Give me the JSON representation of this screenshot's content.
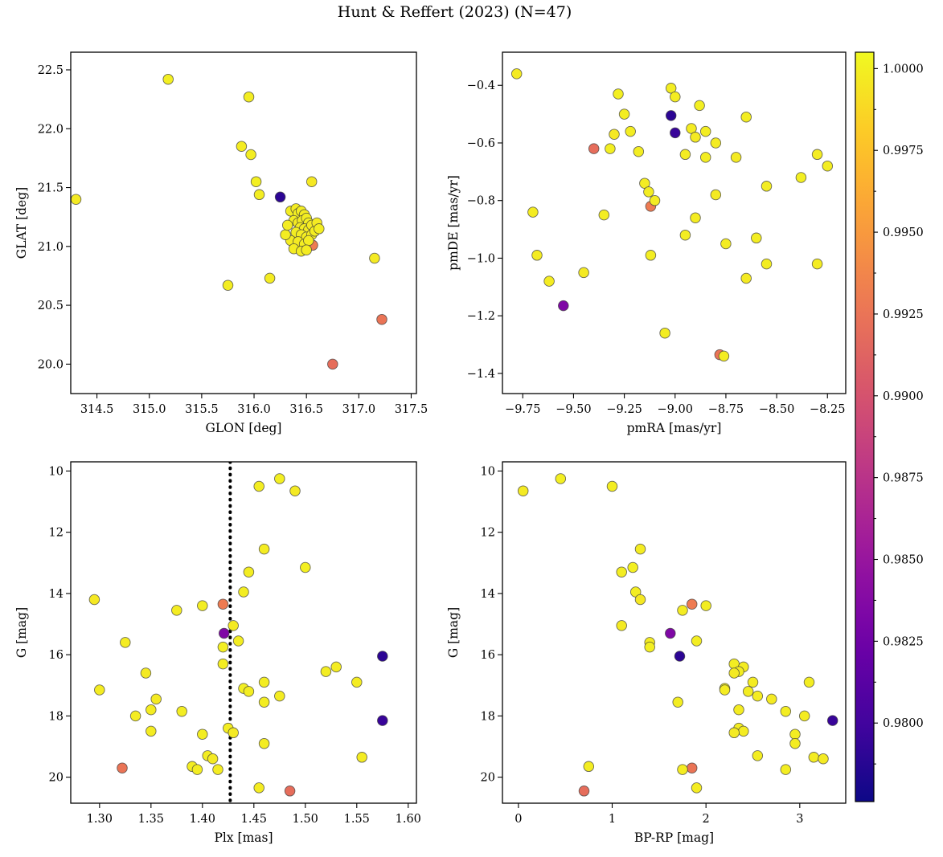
{
  "title": "Hunt & Reffert (2023) (N=47)",
  "colors": {
    "background": "#ffffff",
    "axis": "#000000",
    "marker_edge": "#3c3c3c",
    "vline": "#000000"
  },
  "colorbar": {
    "vmin": 0.9776,
    "vmax": 1.0005,
    "colormap": "plasma",
    "ticks": [
      1.0,
      0.9975,
      0.995,
      0.9925,
      0.99,
      0.9875,
      0.985,
      0.9825,
      0.98
    ],
    "tick_labels": [
      "1.0000",
      "0.9975",
      "0.9950",
      "0.9925",
      "0.9900",
      "0.9875",
      "0.9850",
      "0.9825",
      "0.9800"
    ]
  },
  "panels": {
    "glon_glat": {
      "xlabel": "GLON [deg]",
      "ylabel": "GLAT [deg]",
      "xfield": "glon",
      "yfield": "glat",
      "xlim": [
        314.25,
        317.55
      ],
      "ylim": [
        22.65,
        19.75
      ],
      "xticks": [
        314.5,
        315.0,
        315.5,
        316.0,
        316.5,
        317.0,
        317.5
      ],
      "xtick_labels": [
        "314.5",
        "315.0",
        "315.5",
        "316.0",
        "316.5",
        "317.0",
        "317.5"
      ],
      "yticks": [
        22.5,
        22.0,
        21.5,
        21.0,
        20.5,
        20.0
      ],
      "ytick_labels": [
        "22.5",
        "22.0",
        "21.5",
        "21.0",
        "20.5",
        "20.0"
      ]
    },
    "pmra_pmde": {
      "xlabel": "pmRA [mas/yr]",
      "ylabel": "pmDE [mas/yr]",
      "xfield": "pmra",
      "yfield": "pmde",
      "xlim": [
        -9.85,
        -8.16
      ],
      "ylim": [
        -0.285,
        -1.47
      ],
      "xticks": [
        -9.75,
        -9.5,
        -9.25,
        -9.0,
        -8.75,
        -8.5,
        -8.25
      ],
      "xtick_labels": [
        "−9.75",
        "−9.50",
        "−9.25",
        "−9.00",
        "−8.75",
        "−8.50",
        "−8.25"
      ],
      "yticks": [
        -0.4,
        -0.6,
        -0.8,
        -1.0,
        -1.2,
        -1.4
      ],
      "ytick_labels": [
        "−0.4",
        "−0.6",
        "−0.8",
        "−1.0",
        "−1.2",
        "−1.4"
      ]
    },
    "plx_g": {
      "xlabel": "Plx [mas]",
      "ylabel": "G [mag]",
      "xfield": "plx",
      "yfield": "g",
      "xlim": [
        1.272,
        1.608
      ],
      "ylim": [
        9.7,
        20.85
      ],
      "xticks": [
        1.3,
        1.35,
        1.4,
        1.45,
        1.5,
        1.55,
        1.6
      ],
      "xtick_labels": [
        "1.30",
        "1.35",
        "1.40",
        "1.45",
        "1.50",
        "1.55",
        "1.60"
      ],
      "yticks": [
        10,
        12,
        14,
        16,
        18,
        20
      ],
      "ytick_labels": [
        "10",
        "12",
        "14",
        "16",
        "18",
        "20"
      ],
      "vline": 1.427
    },
    "bprp_g": {
      "xlabel": "BP-RP [mag]",
      "ylabel": "G [mag]",
      "xfield": "bprp",
      "yfield": "g",
      "xlim": [
        -0.17,
        3.49
      ],
      "ylim": [
        9.7,
        20.85
      ],
      "xticks": [
        0,
        1,
        2,
        3
      ],
      "xtick_labels": [
        "0",
        "1",
        "2",
        "3"
      ],
      "yticks": [
        10,
        12,
        14,
        16,
        18,
        20
      ],
      "ytick_labels": [
        "10",
        "12",
        "14",
        "16",
        "18",
        "20"
      ]
    }
  },
  "chart_data": {
    "type": "scatter",
    "n": 47,
    "title": "Hunt & Reffert (2023) (N=47)",
    "color_by": "membership probability",
    "colormap": "plasma",
    "color_range": [
      0.9776,
      1.0005
    ],
    "stars": [
      {
        "glon": 316.47,
        "glat": 21.18,
        "pmra": -9.55,
        "pmde": -1.165,
        "plx": 1.421,
        "g": 15.3,
        "bprp": 1.62,
        "p": 0.9835
      },
      {
        "glon": 316.43,
        "glat": 21.24,
        "pmra": -9.0,
        "pmde": -0.565,
        "plx": 1.575,
        "g": 18.15,
        "bprp": 3.35,
        "p": 0.9795
      },
      {
        "glon": 314.3,
        "glat": 21.4,
        "pmra": -9.78,
        "pmde": -0.36,
        "plx": 1.49,
        "g": 10.65,
        "bprp": 0.05,
        "p": 0.9997
      },
      {
        "glon": 315.18,
        "glat": 22.42,
        "pmra": -9.28,
        "pmde": -0.43,
        "plx": 1.475,
        "g": 10.25,
        "bprp": 0.45,
        "p": 1.0
      },
      {
        "glon": 315.95,
        "glat": 22.27,
        "pmra": -9.02,
        "pmde": -0.41,
        "plx": 1.455,
        "g": 10.5,
        "bprp": 1.0,
        "p": 0.9999
      },
      {
        "glon": 315.88,
        "glat": 21.85,
        "pmra": -9.0,
        "pmde": -0.44,
        "plx": 1.46,
        "g": 12.55,
        "bprp": 1.3,
        "p": 0.9998
      },
      {
        "glon": 315.97,
        "glat": 21.78,
        "pmra": -9.25,
        "pmde": -0.5,
        "plx": 1.445,
        "g": 13.3,
        "bprp": 1.1,
        "p": 0.9999
      },
      {
        "glon": 316.02,
        "glat": 21.55,
        "pmra": -8.88,
        "pmde": -0.47,
        "plx": 1.5,
        "g": 13.15,
        "bprp": 1.22,
        "p": 1.0
      },
      {
        "glon": 316.05,
        "glat": 21.44,
        "pmra": -8.65,
        "pmde": -0.51,
        "plx": 1.44,
        "g": 13.95,
        "bprp": 1.25,
        "p": 0.9999
      },
      {
        "glon": 316.55,
        "glat": 21.55,
        "pmra": -9.3,
        "pmde": -0.57,
        "plx": 1.295,
        "g": 14.2,
        "bprp": 1.3,
        "p": 0.9996
      },
      {
        "glon": 316.56,
        "glat": 21.01,
        "pmra": -9.12,
        "pmde": -0.82,
        "plx": 1.42,
        "g": 14.35,
        "bprp": 1.85,
        "p": 0.993
      },
      {
        "glon": 315.75,
        "glat": 20.67,
        "pmra": -9.22,
        "pmde": -0.56,
        "plx": 1.4,
        "g": 14.4,
        "bprp": 2.0,
        "p": 0.9999
      },
      {
        "glon": 316.15,
        "glat": 20.73,
        "pmra": -8.92,
        "pmde": -0.55,
        "plx": 1.375,
        "g": 14.55,
        "bprp": 1.75,
        "p": 0.9998
      },
      {
        "glon": 317.15,
        "glat": 20.9,
        "pmra": -8.9,
        "pmde": -0.58,
        "plx": 1.43,
        "g": 15.05,
        "bprp": 1.1,
        "p": 0.9997
      },
      {
        "glon": 316.35,
        "glat": 21.3,
        "pmra": -8.85,
        "pmde": -0.56,
        "plx": 1.435,
        "g": 15.55,
        "bprp": 1.9,
        "p": 0.9999
      },
      {
        "glon": 316.4,
        "glat": 21.32,
        "pmra": -8.8,
        "pmde": -0.6,
        "plx": 1.325,
        "g": 15.6,
        "bprp": 1.4,
        "p": 0.9998
      },
      {
        "glon": 316.42,
        "glat": 21.28,
        "pmra": -9.32,
        "pmde": -0.62,
        "plx": 1.42,
        "g": 15.75,
        "bprp": 1.4,
        "p": 1.0
      },
      {
        "glon": 316.25,
        "glat": 21.42,
        "pmra": -9.02,
        "pmde": -0.505,
        "plx": 1.575,
        "g": 16.05,
        "bprp": 1.72,
        "p": 0.979
      },
      {
        "glon": 316.45,
        "glat": 21.3,
        "pmra": -9.18,
        "pmde": -0.63,
        "plx": 1.42,
        "g": 16.3,
        "bprp": 2.3,
        "p": 0.9999
      },
      {
        "glon": 316.48,
        "glat": 21.27,
        "pmra": -8.95,
        "pmde": -0.64,
        "plx": 1.53,
        "g": 16.4,
        "bprp": 2.4,
        "p": 0.9998
      },
      {
        "glon": 316.38,
        "glat": 21.22,
        "pmra": -8.85,
        "pmde": -0.65,
        "plx": 1.52,
        "g": 16.55,
        "bprp": 2.35,
        "p": 0.9999
      },
      {
        "glon": 316.42,
        "glat": 21.2,
        "pmra": -8.7,
        "pmde": -0.65,
        "plx": 1.345,
        "g": 16.6,
        "bprp": 2.3,
        "p": 0.9997
      },
      {
        "glon": 316.46,
        "glat": 21.22,
        "pmra": -8.3,
        "pmde": -0.64,
        "plx": 1.55,
        "g": 16.9,
        "bprp": 2.5,
        "p": 0.9998
      },
      {
        "glon": 316.5,
        "glat": 21.24,
        "pmra": -8.25,
        "pmde": -0.68,
        "plx": 1.46,
        "g": 16.9,
        "bprp": 3.1,
        "p": 0.9999
      },
      {
        "glon": 316.52,
        "glat": 21.2,
        "pmra": -8.38,
        "pmde": -0.72,
        "plx": 1.44,
        "g": 17.1,
        "bprp": 2.2,
        "p": 1.0
      },
      {
        "glon": 316.44,
        "glat": 21.16,
        "pmra": -9.15,
        "pmde": -0.74,
        "plx": 1.3,
        "g": 17.15,
        "bprp": 2.2,
        "p": 0.9998
      },
      {
        "glon": 316.48,
        "glat": 21.15,
        "pmra": -9.13,
        "pmde": -0.77,
        "plx": 1.445,
        "g": 17.2,
        "bprp": 2.45,
        "p": 0.9999
      },
      {
        "glon": 316.52,
        "glat": 21.14,
        "pmra": -9.1,
        "pmde": -0.8,
        "plx": 1.475,
        "g": 17.35,
        "bprp": 2.55,
        "p": 0.9998
      },
      {
        "glon": 316.55,
        "glat": 21.18,
        "pmra": -8.8,
        "pmde": -0.78,
        "plx": 1.355,
        "g": 17.45,
        "bprp": 2.7,
        "p": 0.9997
      },
      {
        "glon": 316.4,
        "glat": 21.12,
        "pmra": -8.55,
        "pmde": -0.75,
        "plx": 1.46,
        "g": 17.55,
        "bprp": 1.7,
        "p": 0.9999
      },
      {
        "glon": 316.45,
        "glat": 21.1,
        "pmra": -9.7,
        "pmde": -0.84,
        "plx": 1.35,
        "g": 17.8,
        "bprp": 2.35,
        "p": 0.9998
      },
      {
        "glon": 316.5,
        "glat": 21.08,
        "pmra": -9.35,
        "pmde": -0.85,
        "plx": 1.38,
        "g": 17.85,
        "bprp": 2.85,
        "p": 0.9999
      },
      {
        "glon": 316.55,
        "glat": 21.1,
        "pmra": -8.9,
        "pmde": -0.86,
        "plx": 1.335,
        "g": 18.0,
        "bprp": 3.05,
        "p": 0.9998
      },
      {
        "glon": 316.58,
        "glat": 21.13,
        "pmra": -8.95,
        "pmde": -0.92,
        "plx": 1.425,
        "g": 18.4,
        "bprp": 2.35,
        "p": 0.9999
      },
      {
        "glon": 316.35,
        "glat": 21.05,
        "pmra": -9.68,
        "pmde": -0.99,
        "plx": 1.35,
        "g": 18.5,
        "bprp": 2.4,
        "p": 0.9998
      },
      {
        "glon": 316.42,
        "glat": 21.04,
        "pmra": -9.45,
        "pmde": -1.05,
        "plx": 1.43,
        "g": 18.55,
        "bprp": 2.3,
        "p": 0.9997
      },
      {
        "glon": 316.48,
        "glat": 21.02,
        "pmra": -9.12,
        "pmde": -0.99,
        "plx": 1.4,
        "g": 18.6,
        "bprp": 2.95,
        "p": 0.9999
      },
      {
        "glon": 316.52,
        "glat": 21.05,
        "pmra": -8.75,
        "pmde": -0.95,
        "plx": 1.46,
        "g": 18.9,
        "bprp": 2.95,
        "p": 0.9998
      },
      {
        "glon": 316.3,
        "glat": 21.1,
        "pmra": -8.55,
        "pmde": -1.02,
        "plx": 1.405,
        "g": 19.3,
        "bprp": 2.55,
        "p": 0.9999
      },
      {
        "glon": 316.32,
        "glat": 21.18,
        "pmra": -8.3,
        "pmde": -1.02,
        "plx": 1.555,
        "g": 19.35,
        "bprp": 3.15,
        "p": 0.9998
      },
      {
        "glon": 316.6,
        "glat": 21.2,
        "pmra": -8.65,
        "pmde": -1.07,
        "plx": 1.41,
        "g": 19.4,
        "bprp": 3.25,
        "p": 0.9997
      },
      {
        "glon": 316.62,
        "glat": 21.15,
        "pmra": -9.05,
        "pmde": -1.26,
        "plx": 1.39,
        "g": 19.65,
        "bprp": 0.75,
        "p": 0.9999
      },
      {
        "glon": 317.22,
        "glat": 20.38,
        "pmra": -8.78,
        "pmde": -1.335,
        "plx": 1.322,
        "g": 19.7,
        "bprp": 1.85,
        "p": 0.9925
      },
      {
        "glon": 316.38,
        "glat": 20.98,
        "pmra": -8.76,
        "pmde": -1.34,
        "plx": 1.415,
        "g": 19.75,
        "bprp": 1.75,
        "p": 0.9998
      },
      {
        "glon": 316.45,
        "glat": 20.96,
        "pmra": -8.6,
        "pmde": -0.93,
        "plx": 1.395,
        "g": 19.75,
        "bprp": 2.85,
        "p": 0.9999
      },
      {
        "glon": 316.5,
        "glat": 20.97,
        "pmra": -9.62,
        "pmde": -1.08,
        "plx": 1.455,
        "g": 20.35,
        "bprp": 1.9,
        "p": 0.9998
      },
      {
        "glon": 316.75,
        "glat": 20.0,
        "pmra": -9.4,
        "pmde": -0.62,
        "plx": 1.485,
        "g": 20.45,
        "bprp": 0.7,
        "p": 0.992
      }
    ]
  }
}
